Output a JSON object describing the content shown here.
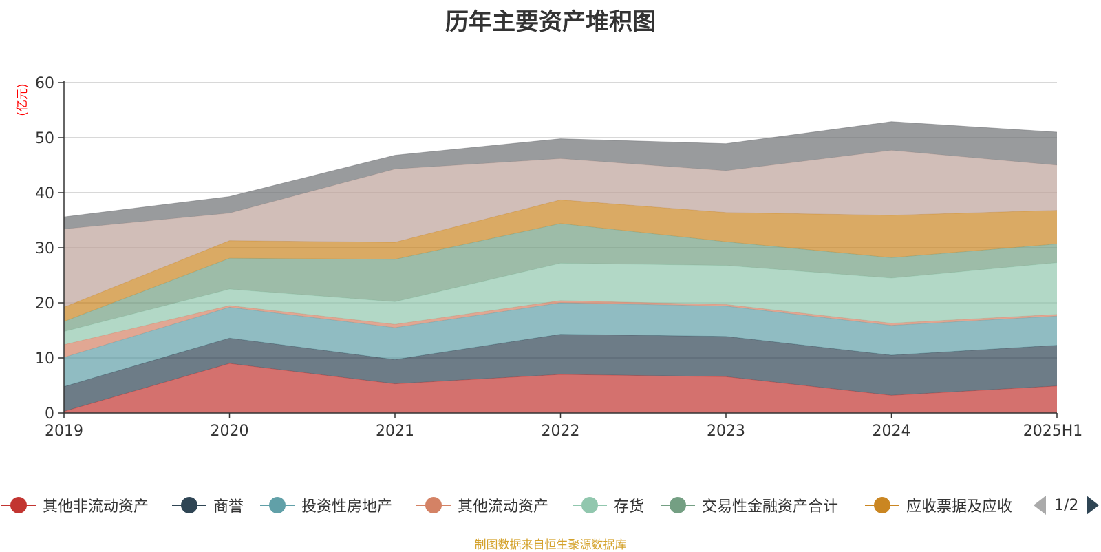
{
  "title": "历年主要资产堆积图",
  "source": "制图数据来自恒生聚源数据库",
  "legend_page": "1/2",
  "colors": {
    "axis": "#333333",
    "grid": "#cccccc",
    "unit": "#ff0000",
    "pager_active": "#2f4554",
    "pager_inactive": "#aaaaaa",
    "source": "#d4a22c"
  },
  "chart_data": {
    "type": "area",
    "stacked": true,
    "title": "历年主要资产堆积图",
    "ylabel": "(亿元)",
    "ylim": [
      0,
      60
    ],
    "yticks": [
      0,
      10,
      20,
      30,
      40,
      50,
      60
    ],
    "grid": true,
    "categories": [
      "2019",
      "2020",
      "2021",
      "2022",
      "2023",
      "2024",
      "2025H1"
    ],
    "legend_position": "bottom",
    "legend_visible": [
      "其他非流动资产",
      "商誉",
      "投资性房地产",
      "其他流动资产",
      "存货",
      "交易性金融资产合计",
      "应收票据及应收"
    ],
    "series": [
      {
        "name": "其他非流动资产",
        "color": "#c23531",
        "values": [
          0.3,
          9.0,
          5.3,
          7.0,
          6.6,
          3.2,
          4.9
        ]
      },
      {
        "name": "商誉",
        "color": "#2f4554",
        "values": [
          4.5,
          4.6,
          4.4,
          7.3,
          7.3,
          7.3,
          7.4
        ]
      },
      {
        "name": "投资性房地产",
        "color": "#61a0a8",
        "values": [
          5.3,
          5.6,
          5.8,
          5.7,
          5.5,
          5.4,
          5.3
        ]
      },
      {
        "name": "其他流动资产",
        "color": "#d48265",
        "values": [
          2.3,
          0.3,
          0.6,
          0.4,
          0.3,
          0.4,
          0.3
        ]
      },
      {
        "name": "存货",
        "color": "#91c7ae",
        "values": [
          2.4,
          3.0,
          4.1,
          6.8,
          7.1,
          8.2,
          9.4
        ]
      },
      {
        "name": "交易性金融资产合计",
        "color": "#749f83",
        "values": [
          1.8,
          5.6,
          7.7,
          7.2,
          4.3,
          3.7,
          3.4
        ]
      },
      {
        "name": "应收票据及应收",
        "color": "#ca8622",
        "values": [
          2.6,
          3.2,
          3.1,
          4.3,
          5.3,
          7.7,
          6.1
        ]
      },
      {
        "color": "#bda29a",
        "values": [
          14.2,
          5.0,
          13.3,
          7.5,
          7.6,
          11.8,
          8.2
        ]
      },
      {
        "color": "#6e7074",
        "values": [
          2.2,
          3.0,
          2.5,
          3.6,
          4.9,
          5.2,
          6.0
        ]
      }
    ]
  }
}
